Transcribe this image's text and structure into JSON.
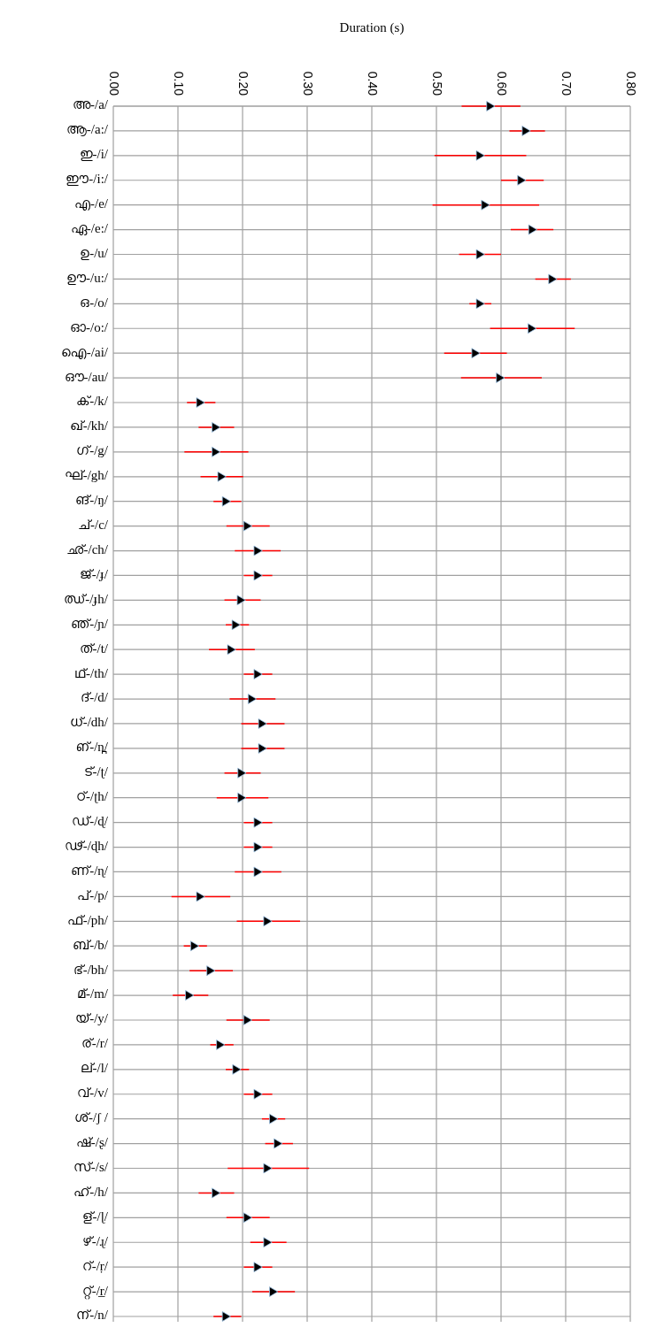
{
  "chart_data": {
    "type": "scatter",
    "orientation": "horizontal",
    "xlabel": "Duration (s)",
    "marker": "triangle",
    "grid": true,
    "xlim": [
      0,
      0.8
    ],
    "xticks": [
      {
        "value": 0,
        "label": "0.00"
      },
      {
        "value": 0.1,
        "label": "0.10"
      },
      {
        "value": 0.2,
        "label": "0.20"
      },
      {
        "value": 0.3,
        "label": "0.30"
      },
      {
        "value": 0.4,
        "label": "0.40"
      },
      {
        "value": 0.5,
        "label": "0.50"
      },
      {
        "value": 0.6,
        "label": "0.60"
      },
      {
        "value": 0.7,
        "label": "0.70"
      },
      {
        "value": 0.8,
        "label": "0.80"
      }
    ],
    "categories": [
      "അ-/a/",
      "ആ-/a:/",
      "ഇ-/i/",
      "ഈ-/i:/",
      "എ-/e/",
      "ഏ-/e:/",
      "ഉ-/u/",
      "ഊ-/u:/",
      "ഒ-/o/",
      "ഓ-/o:/",
      "ഐ-/ai/",
      "ഔ-/au/",
      "ക്-/k/",
      "ഖ്-/kh/",
      "ഗ്-/g/",
      "ഘ്-/gh/",
      "ങ്-/ŋ/",
      "ച്-/c/",
      "ഛ്-/ch/",
      "ജ്-/ɟ/",
      "ഝ്-/ɟh/",
      "ഞ്-/ɲ/",
      "ത്-/t/",
      "ഥ്-/th/",
      "ദ്-/d/",
      "ധ്-/dh/",
      "ഩ്-/n̪/",
      "ട്-/ʈ/",
      "ഠ്-/ʈh/",
      "ഡ്-/ɖ/",
      "ഢ്-/ɖh/",
      "ണ്-/ɳ/",
      "പ്-/p/",
      "ഫ്-/ph/",
      "ബ്-/b/",
      "ഭ്-/bh/",
      "മ്-/m/",
      "യ്-/y/",
      "ര്-/r/",
      "ല്-/l/",
      "വ്-/v/",
      "ശ്-/ʃ /",
      "ഷ്-/ʂ/",
      "സ്-/s/",
      "ഹ്-/h/",
      "ള്-/ɭ/",
      "ഴ്-/ɻ/",
      "റ്-/ṛ/",
      "റ്റ്-/r̲/",
      "ന്-/n/"
    ],
    "series": [
      {
        "color": "#000000",
        "values": [
          0.583,
          0.638,
          0.567,
          0.631,
          0.575,
          0.648,
          0.567,
          0.679,
          0.567,
          0.647,
          0.56,
          0.598,
          0.134,
          0.158,
          0.158,
          0.167,
          0.174,
          0.207,
          0.223,
          0.223,
          0.197,
          0.189,
          0.182,
          0.223,
          0.214,
          0.23,
          0.23,
          0.198,
          0.198,
          0.223,
          0.223,
          0.223,
          0.134,
          0.238,
          0.125,
          0.15,
          0.117,
          0.207,
          0.165,
          0.19,
          0.223,
          0.247,
          0.254,
          0.238,
          0.158,
          0.207,
          0.238,
          0.223,
          0.247,
          0.174
        ],
        "errors": [
          [
            0.539,
            0.63
          ],
          [
            0.613,
            0.668
          ],
          [
            0.497,
            0.639
          ],
          [
            0.6,
            0.666
          ],
          [
            0.494,
            0.659
          ],
          [
            0.615,
            0.681
          ],
          [
            0.535,
            0.6
          ],
          [
            0.653,
            0.708
          ],
          [
            0.551,
            0.585
          ],
          [
            0.583,
            0.714
          ],
          [
            0.512,
            0.609
          ],
          [
            0.538,
            0.663
          ],
          [
            0.114,
            0.158
          ],
          [
            0.132,
            0.187
          ],
          [
            0.11,
            0.209
          ],
          [
            0.135,
            0.201
          ],
          [
            0.155,
            0.198
          ],
          [
            0.175,
            0.242
          ],
          [
            0.188,
            0.259
          ],
          [
            0.202,
            0.246
          ],
          [
            0.172,
            0.228
          ],
          [
            0.174,
            0.21
          ],
          [
            0.148,
            0.219
          ],
          [
            0.202,
            0.246
          ],
          [
            0.18,
            0.251
          ],
          [
            0.198,
            0.265
          ],
          [
            0.198,
            0.265
          ],
          [
            0.172,
            0.228
          ],
          [
            0.16,
            0.24
          ],
          [
            0.202,
            0.246
          ],
          [
            0.202,
            0.246
          ],
          [
            0.188,
            0.26
          ],
          [
            0.09,
            0.181
          ],
          [
            0.191,
            0.289
          ],
          [
            0.109,
            0.145
          ],
          [
            0.118,
            0.185
          ],
          [
            0.092,
            0.147
          ],
          [
            0.175,
            0.242
          ],
          [
            0.15,
            0.186
          ],
          [
            0.174,
            0.21
          ],
          [
            0.202,
            0.246
          ],
          [
            0.23,
            0.266
          ],
          [
            0.235,
            0.278
          ],
          [
            0.177,
            0.303
          ],
          [
            0.132,
            0.187
          ],
          [
            0.175,
            0.242
          ],
          [
            0.212,
            0.268
          ],
          [
            0.202,
            0.246
          ],
          [
            0.215,
            0.281
          ],
          [
            0.155,
            0.198
          ]
        ]
      }
    ]
  }
}
